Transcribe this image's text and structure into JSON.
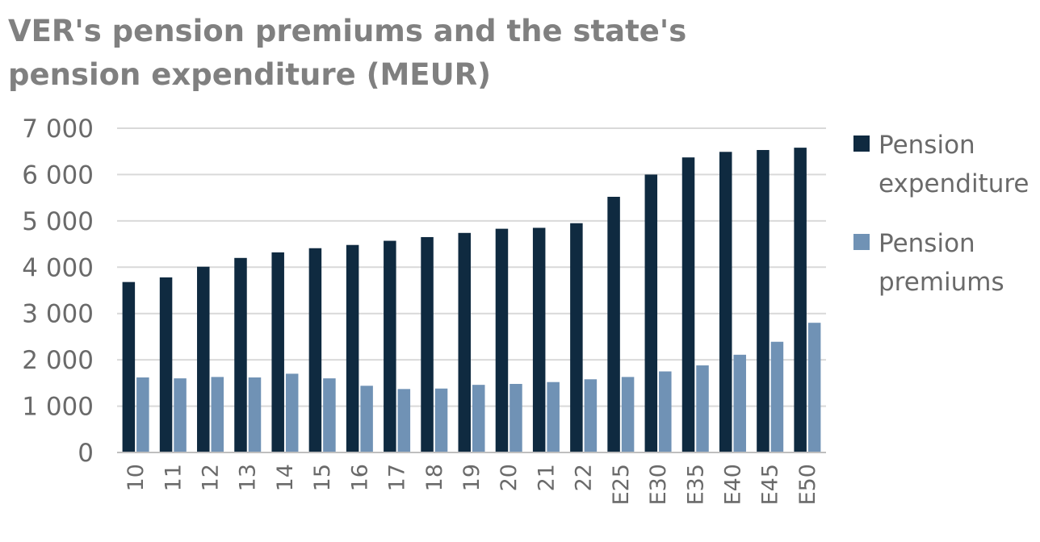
{
  "chart_data": {
    "type": "bar",
    "title": "VER's pension premiums and the state's pension expenditure (MEUR)",
    "categories": [
      "10",
      "11",
      "12",
      "13",
      "14",
      "15",
      "16",
      "17",
      "18",
      "19",
      "20",
      "21",
      "22",
      "E25",
      "E30",
      "E35",
      "E40",
      "E45",
      "E50"
    ],
    "series": [
      {
        "name": "Pension expenditure",
        "color": "#0f2a40",
        "values": [
          3680,
          3780,
          4010,
          4200,
          4320,
          4410,
          4480,
          4570,
          4650,
          4740,
          4830,
          4850,
          4950,
          5520,
          6000,
          6370,
          6490,
          6530,
          6580
        ]
      },
      {
        "name": "Pension premiums",
        "color": "#7092b5",
        "values": [
          1620,
          1600,
          1630,
          1620,
          1700,
          1600,
          1440,
          1370,
          1380,
          1460,
          1480,
          1520,
          1580,
          1630,
          1750,
          1880,
          2110,
          2390,
          2800
        ]
      }
    ],
    "y_ticks": [
      "0",
      "1 000",
      "2 000",
      "3 000",
      "4 000",
      "5 000",
      "6 000",
      "7 000"
    ],
    "ylim": [
      0,
      7000
    ],
    "grid": true,
    "legend_position": "right",
    "legend": [
      {
        "lines": [
          "Pension",
          "expenditure"
        ],
        "color": "#0f2a40"
      },
      {
        "lines": [
          "Pension",
          "premiums"
        ],
        "color": "#7092b5"
      }
    ]
  }
}
